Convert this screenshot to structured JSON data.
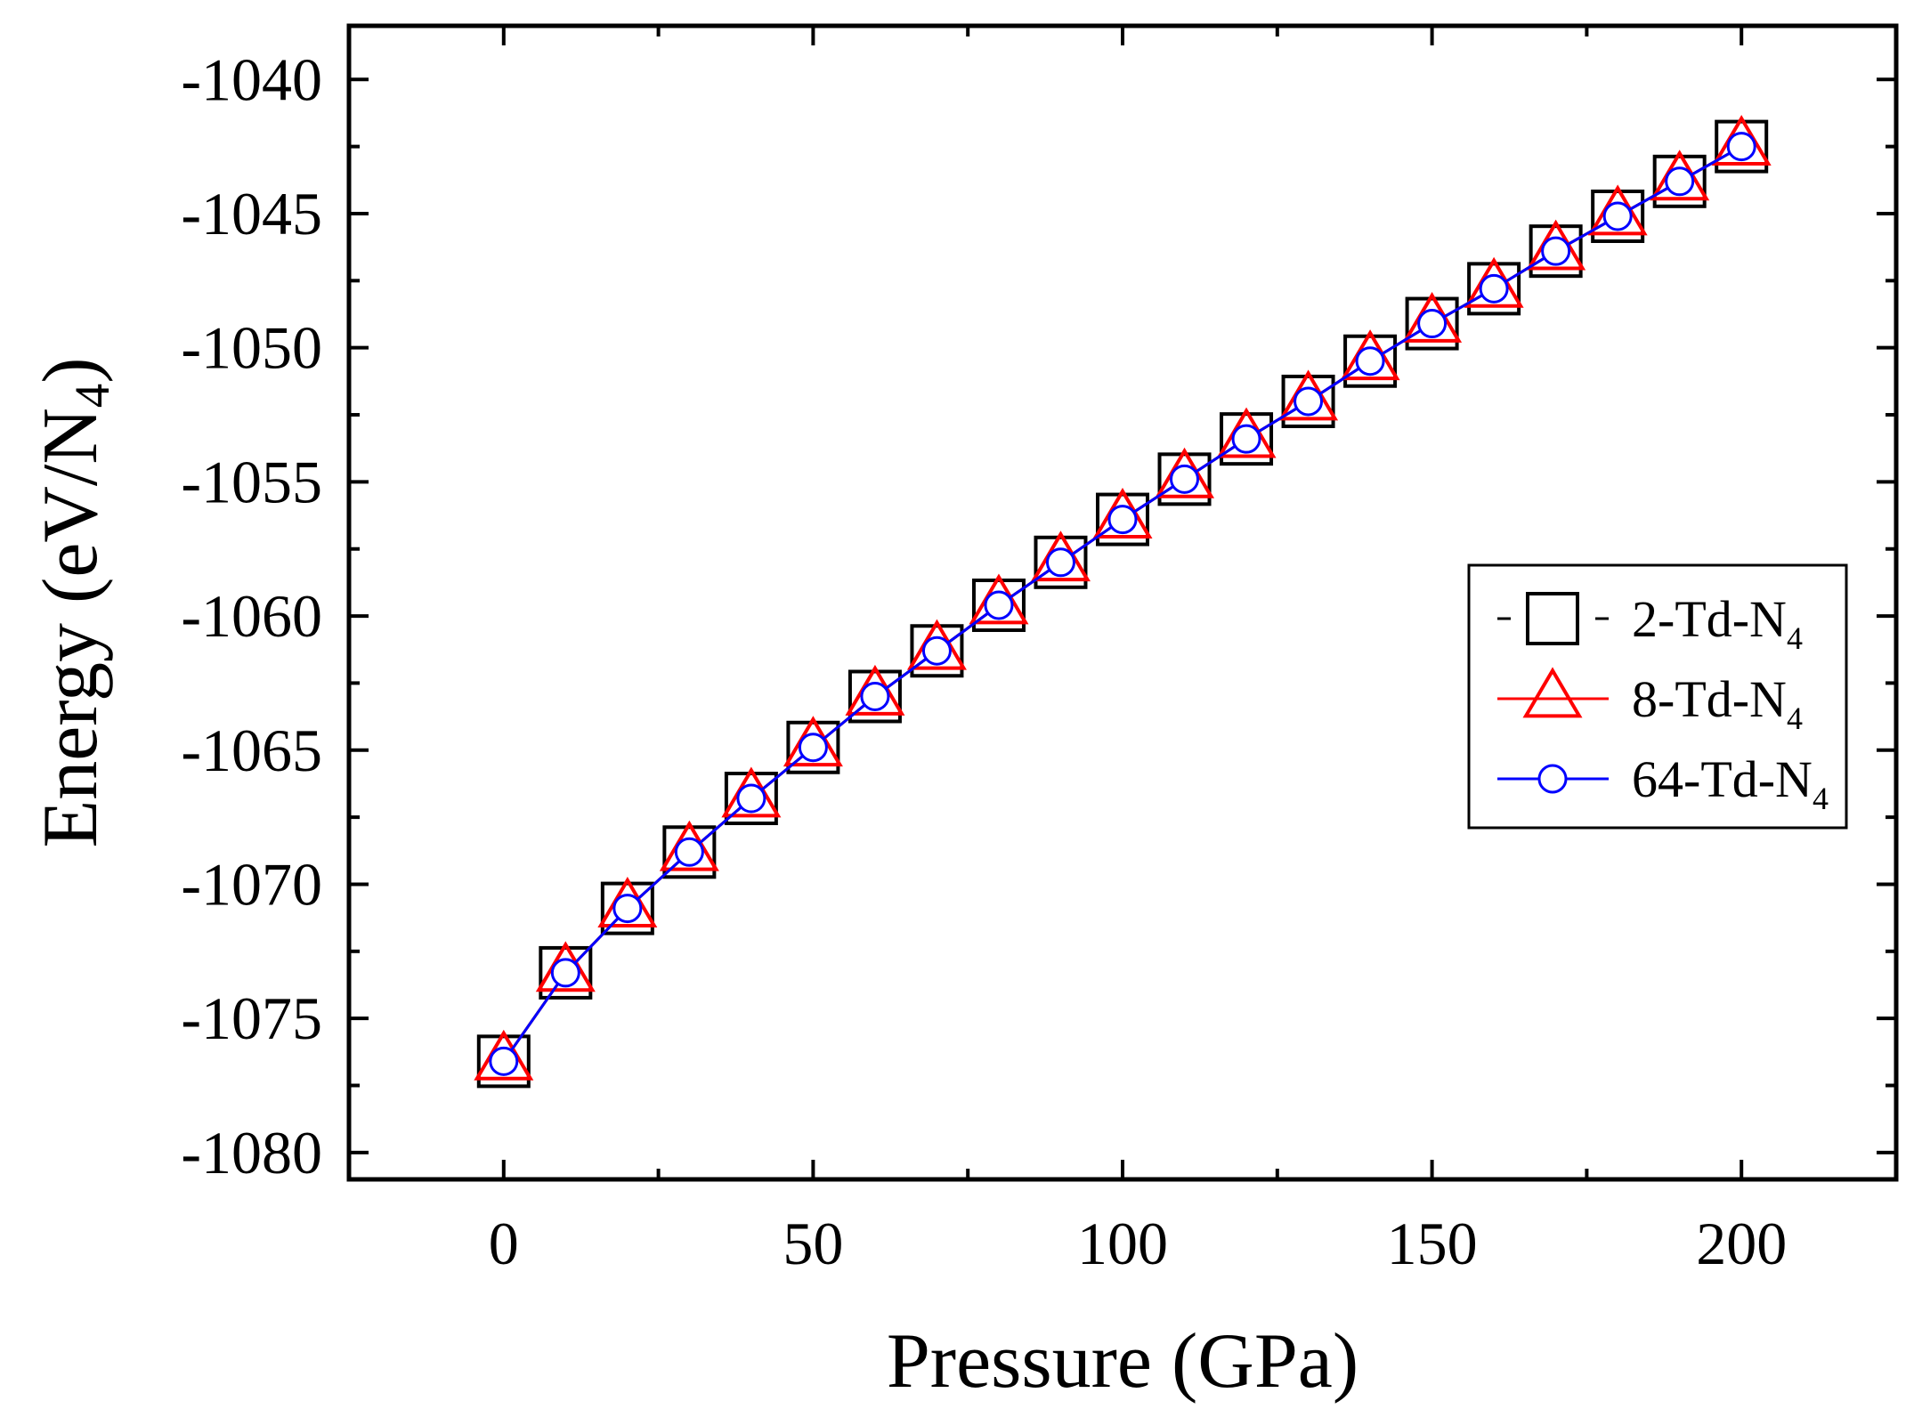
{
  "chart_data": {
    "type": "line",
    "title": "",
    "xlabel": "Pressure (GPa)",
    "ylabel_main": "Energy (eV/N",
    "ylabel_sub": "4",
    "ylabel_close": ")",
    "xlim": [
      -25,
      225
    ],
    "ylim": [
      -1081,
      -1038
    ],
    "xticks": [
      0,
      50,
      100,
      150,
      200
    ],
    "xtick_labels": [
      "0",
      "50",
      "100",
      "150",
      "200"
    ],
    "yticks": [
      -1040,
      -1045,
      -1050,
      -1055,
      -1060,
      -1065,
      -1070,
      -1075,
      -1080
    ],
    "ytick_labels": [
      "-1040",
      "-1045",
      "-1050",
      "-1055",
      "-1060",
      "-1065",
      "-1070",
      "-1075",
      "-1080"
    ],
    "x": [
      0,
      10,
      20,
      30,
      40,
      50,
      60,
      70,
      80,
      90,
      100,
      110,
      120,
      130,
      140,
      150,
      160,
      170,
      180,
      190,
      200
    ],
    "series": [
      {
        "name": "2-Td-N",
        "name_main": "2-Td-N",
        "name_sub": "4",
        "color": "#000000",
        "marker": "square",
        "values": [
          -1076.6,
          -1073.3,
          -1070.9,
          -1068.8,
          -1066.8,
          -1064.9,
          -1063.0,
          -1061.3,
          -1059.6,
          -1058.0,
          -1056.4,
          -1054.9,
          -1053.4,
          -1052.0,
          -1050.5,
          -1049.1,
          -1047.8,
          -1046.4,
          -1045.1,
          -1043.8,
          -1042.5
        ]
      },
      {
        "name": "8-Td-N",
        "name_main": "8-Td-N",
        "name_sub": "4",
        "color": "#ff0000",
        "marker": "triangle",
        "values": [
          -1076.6,
          -1073.3,
          -1070.9,
          -1068.8,
          -1066.8,
          -1064.9,
          -1063.0,
          -1061.3,
          -1059.6,
          -1058.0,
          -1056.4,
          -1054.9,
          -1053.4,
          -1052.0,
          -1050.5,
          -1049.1,
          -1047.8,
          -1046.4,
          -1045.1,
          -1043.8,
          -1042.5
        ]
      },
      {
        "name": "64-Td-N",
        "name_main": "64-Td-N",
        "name_sub": "4",
        "color": "#0000ff",
        "marker": "circle",
        "values": [
          -1076.6,
          -1073.3,
          -1070.9,
          -1068.8,
          -1066.8,
          -1064.9,
          -1063.0,
          -1061.3,
          -1059.6,
          -1058.0,
          -1056.4,
          -1054.9,
          -1053.4,
          -1052.0,
          -1050.5,
          -1049.1,
          -1047.8,
          -1046.4,
          -1045.1,
          -1043.8,
          -1042.5
        ]
      }
    ],
    "legend_position": "center-right",
    "grid": false
  }
}
